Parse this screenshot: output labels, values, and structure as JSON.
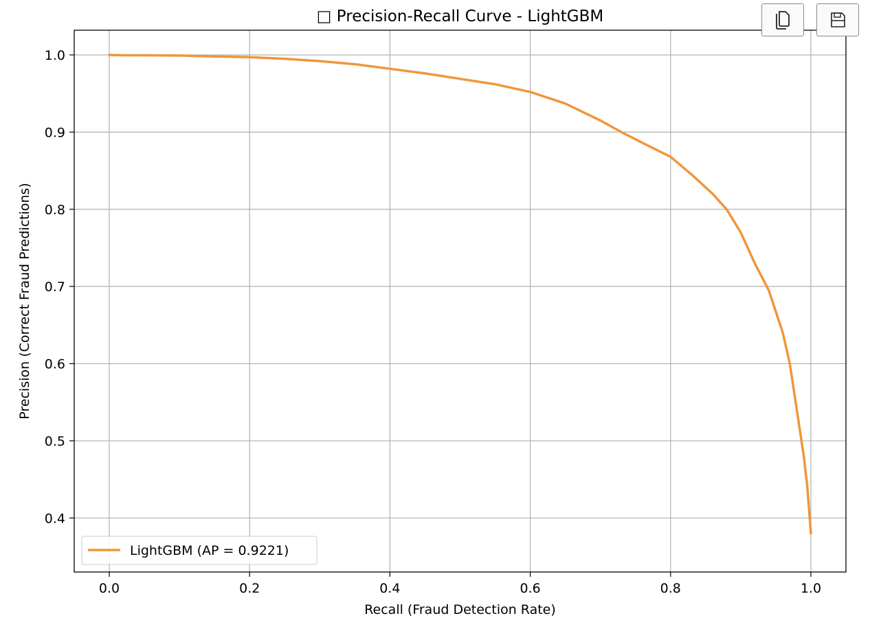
{
  "toolbar": {
    "copy_icon": "copy-icon",
    "save_icon": "save-icon"
  },
  "chart_data": {
    "type": "line",
    "title": "□ Precision-Recall Curve - LightGBM",
    "xlabel": "Recall (Fraud Detection Rate)",
    "ylabel": "Precision (Correct Fraud Predictions)",
    "xlim": [
      -0.05,
      1.05
    ],
    "ylim": [
      0.33,
      1.032
    ],
    "xticks": [
      0.0,
      0.2,
      0.4,
      0.6,
      0.8,
      1.0
    ],
    "xtick_labels": [
      "0.0",
      "0.2",
      "0.4",
      "0.6",
      "0.8",
      "1.0"
    ],
    "yticks": [
      0.4,
      0.5,
      0.6,
      0.7,
      0.8,
      0.9,
      1.0
    ],
    "ytick_labels": [
      "0.4",
      "0.5",
      "0.6",
      "0.7",
      "0.8",
      "0.9",
      "1.0"
    ],
    "grid": true,
    "legend_position": "lower-left",
    "series": [
      {
        "name": "LightGBM (AP = 0.9221)",
        "color": "#f0963a",
        "x": [
          0.0,
          0.02,
          0.05,
          0.1,
          0.15,
          0.2,
          0.25,
          0.3,
          0.35,
          0.4,
          0.45,
          0.5,
          0.55,
          0.6,
          0.65,
          0.7,
          0.73,
          0.76,
          0.8,
          0.83,
          0.86,
          0.88,
          0.9,
          0.92,
          0.94,
          0.96,
          0.97,
          0.98,
          0.99,
          0.995,
          1.0
        ],
        "y": [
          1.0,
          0.9995,
          0.9995,
          0.9992,
          0.998,
          0.997,
          0.995,
          0.992,
          0.988,
          0.982,
          0.976,
          0.969,
          0.962,
          0.952,
          0.937,
          0.915,
          0.9,
          0.886,
          0.868,
          0.845,
          0.82,
          0.8,
          0.77,
          0.73,
          0.695,
          0.64,
          0.6,
          0.54,
          0.48,
          0.44,
          0.38
        ]
      }
    ]
  }
}
